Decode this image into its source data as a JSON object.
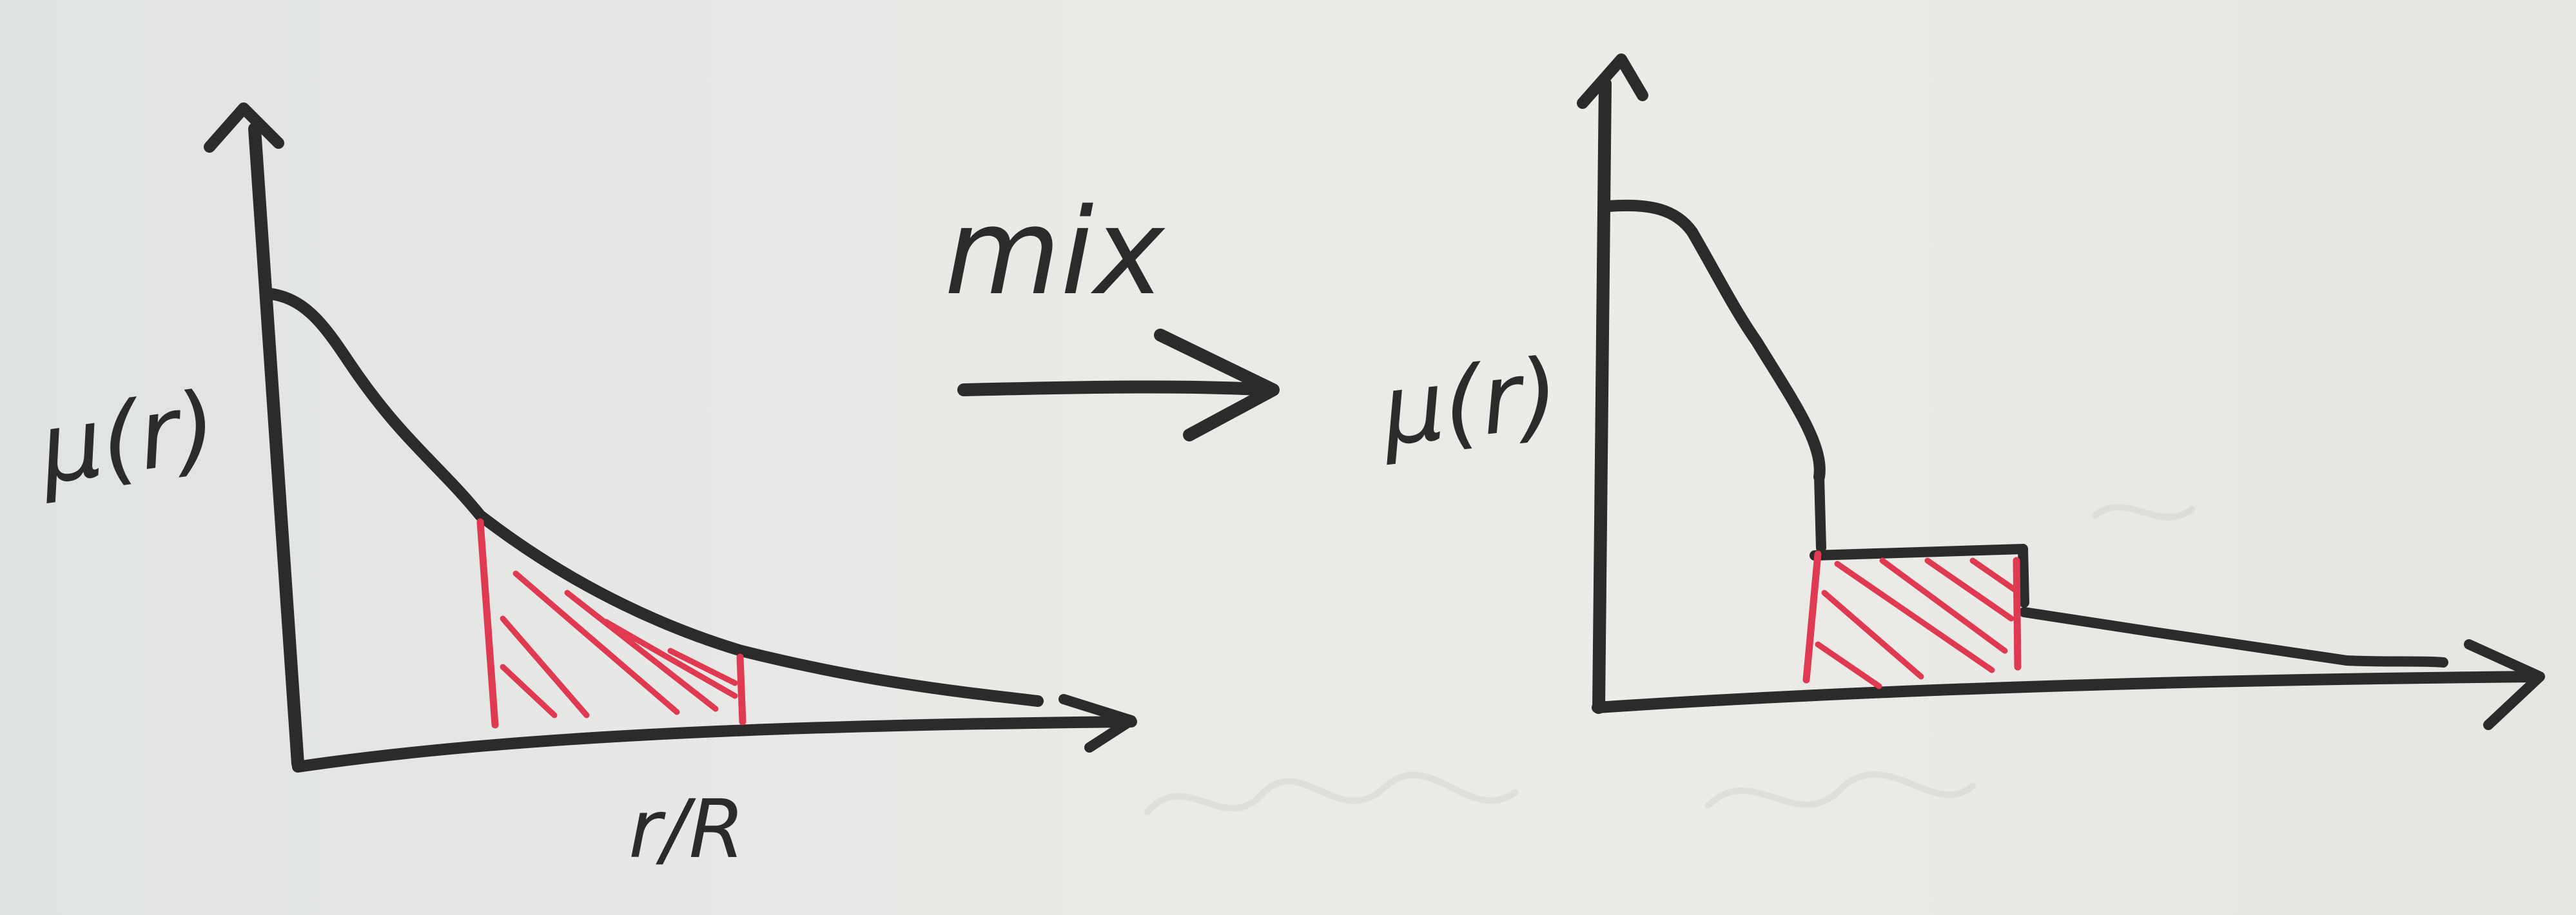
{
  "labels": {
    "left_y": "μ(r)",
    "left_x": "r/R",
    "arrow": "mix",
    "right_y": "μ(r)"
  },
  "colors": {
    "board": "#e8e8e4",
    "marker_black": "#2b2b2b",
    "marker_red": "#e03a52",
    "ghost": "#d9d9d5"
  }
}
